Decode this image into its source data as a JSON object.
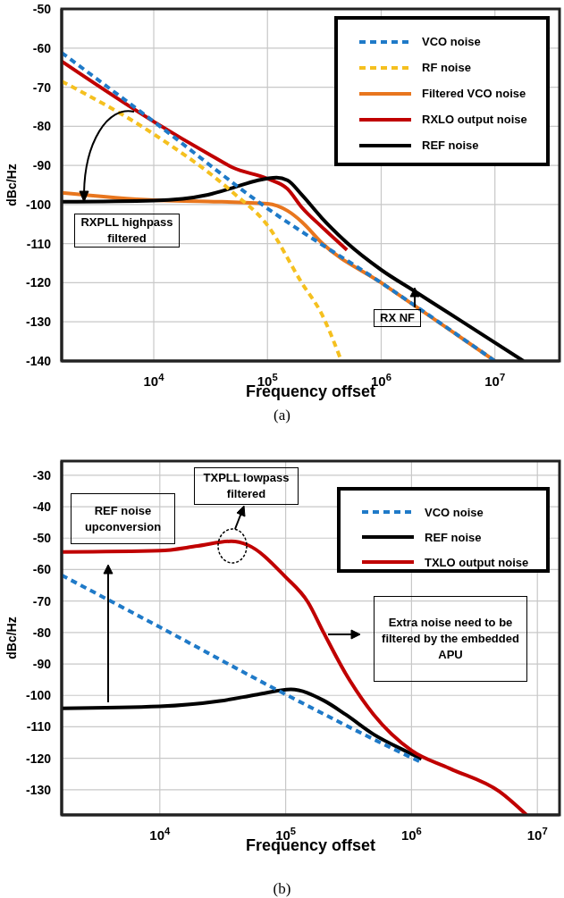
{
  "chart_data": [
    {
      "type": "line",
      "xlabel": "Frequency offset",
      "ylabel": "dBc/Hz",
      "log": "x",
      "grid": true,
      "legend": "top right",
      "marker": "none",
      "xlim": [
        1550,
        37000000
      ],
      "ylim": [
        -140,
        -50
      ],
      "xticks": [
        {
          "value": 10000,
          "label": "10$^{4}$"
        },
        {
          "value": 100000,
          "label": "10$^{5}$"
        },
        {
          "value": 1000000,
          "label": "10$^{6}$"
        },
        {
          "value": 10000000,
          "label": "10$^{7}$"
        }
      ],
      "yticks": [
        -140,
        -130,
        -120,
        -110,
        -100,
        -90,
        -80,
        -70,
        -60,
        -50
      ],
      "series": [
        {
          "name": "VCO noise",
          "color": "#1f7ac8",
          "line_style": "dashed",
          "x": [
            1550,
            10000,
            100000,
            1000000,
            10000000
          ],
          "values": [
            -61.2,
            -78.8,
            -101,
            -120,
            -140
          ]
        },
        {
          "name": "RF noise",
          "color": "#f5c01f",
          "line_style": "dashed",
          "x": [
            1550,
            10000,
            50000,
            100000,
            200000,
            300000,
            440000
          ],
          "values": [
            -68.5,
            -82,
            -97,
            -105.3,
            -120,
            -128,
            -139.5
          ]
        },
        {
          "name": "Filtered VCO noise",
          "color": "#e8761e",
          "line_style": "solid",
          "x": [
            1550,
            10000,
            30000,
            100000,
            150000,
            200000,
            300000,
            1000000,
            10000000
          ],
          "values": [
            -97,
            -98.9,
            -99.2,
            -99.8,
            -101.6,
            -104.4,
            -109.8,
            -120,
            -140
          ]
        },
        {
          "name": "RXLO output noise",
          "color": "#c00000",
          "line_style": "solid",
          "x": [
            1550,
            10000,
            30000,
            50000,
            100000,
            150000,
            200000,
            300000,
            500000
          ],
          "values": [
            -63.4,
            -78.8,
            -87,
            -90.6,
            -93.4,
            -96,
            -100.7,
            -105.7,
            -111.6
          ]
        },
        {
          "name": "REF noise",
          "color": "#000000",
          "line_style": "solid",
          "x": [
            1550,
            10000,
            30000,
            50000,
            80000,
            120000,
            150000,
            200000,
            300000,
            500000,
            1000000,
            2000000,
            5000000,
            17800000
          ],
          "values": [
            -99.3,
            -99,
            -97.5,
            -95.7,
            -93.9,
            -93.1,
            -93.8,
            -97.5,
            -103.4,
            -109.8,
            -116.7,
            -122.3,
            -129.7,
            -140
          ]
        }
      ],
      "annotations": [
        "RXPLL highpass filtered",
        "RX NF",
        "(a)"
      ]
    },
    {
      "type": "line",
      "xlabel": "Frequency offset",
      "ylabel": "dBc/Hz",
      "log": "x",
      "grid": true,
      "legend": "top right",
      "marker": "none",
      "xlim": [
        1660,
        15000000
      ],
      "ylim": [
        -138,
        -25.5
      ],
      "xticks": [
        {
          "value": 10000,
          "label": "10$^{4}$"
        },
        {
          "value": 100000,
          "label": "10$^{5}$"
        },
        {
          "value": 1000000,
          "label": "10$^{6}$"
        },
        {
          "value": 10000000,
          "label": "10$^{7}$"
        }
      ],
      "yticks": [
        -130,
        -120,
        -110,
        -100,
        -90,
        -80,
        -70,
        -60,
        -50,
        -40,
        -30
      ],
      "series": [
        {
          "name": "VCO noise",
          "color": "#1f7ac8",
          "line_style": "dashed",
          "x": [
            1660,
            10000,
            100000,
            1000000,
            1200000
          ],
          "values": [
            -61.8,
            -78.3,
            -99.7,
            -119.8,
            -121.3
          ]
        },
        {
          "name": "REF noise",
          "color": "#000000",
          "line_style": "solid",
          "x": [
            1660,
            10000,
            30000,
            60000,
            110000,
            200000,
            300000,
            500000,
            1000000,
            1200000
          ],
          "values": [
            -104.1,
            -103.5,
            -101.8,
            -99.7,
            -98.1,
            -101.6,
            -106.1,
            -112.4,
            -118.6,
            -120.2
          ]
        },
        {
          "name": "TXLO output noise",
          "color": "#c00000",
          "line_style": "solid",
          "x": [
            1660,
            10000,
            20000,
            37000,
            50000,
            100000,
            150000,
            200000,
            300000,
            500000,
            1000000,
            2000000,
            5000000,
            8200000
          ],
          "values": [
            -54.4,
            -54,
            -52.5,
            -51,
            -52.2,
            -62.4,
            -70.3,
            -80,
            -93.1,
            -106.1,
            -117.5,
            -123.2,
            -130.6,
            -138
          ]
        }
      ],
      "annotations": [
        "REF noise upconversion",
        "TXPLL lowpass filtered",
        "Extra noise need to be filtered by the embedded APU",
        "(b)"
      ]
    }
  ]
}
